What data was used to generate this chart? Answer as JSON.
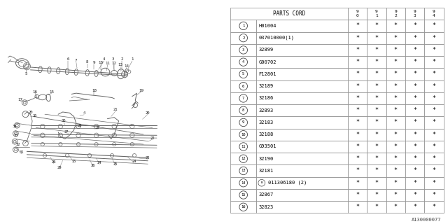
{
  "part_number_label": "A130000077",
  "table": {
    "header_col": "PARTS CORD",
    "year_cols": [
      "9\n0",
      "9\n1",
      "9\n2",
      "9\n3",
      "9\n4"
    ],
    "rows": [
      {
        "num": "1",
        "part": "H01004"
      },
      {
        "num": "2",
        "part": "037010000(1)"
      },
      {
        "num": "3",
        "part": "32899"
      },
      {
        "num": "4",
        "part": "G00702"
      },
      {
        "num": "5",
        "part": "F12801"
      },
      {
        "num": "6",
        "part": "32189"
      },
      {
        "num": "7",
        "part": "32186"
      },
      {
        "num": "8",
        "part": "32893"
      },
      {
        "num": "9",
        "part": "32183"
      },
      {
        "num": "10",
        "part": "32188"
      },
      {
        "num": "11",
        "part": "G93501"
      },
      {
        "num": "12",
        "part": "32190"
      },
      {
        "num": "13",
        "part": "32181"
      },
      {
        "num": "14",
        "part": "011306180 (2)",
        "special_b": true
      },
      {
        "num": "15",
        "part": "32867"
      },
      {
        "num": "16",
        "part": "32823"
      }
    ]
  },
  "bg_color": "#ffffff",
  "line_color": "#666666",
  "grid_color": "#999999"
}
